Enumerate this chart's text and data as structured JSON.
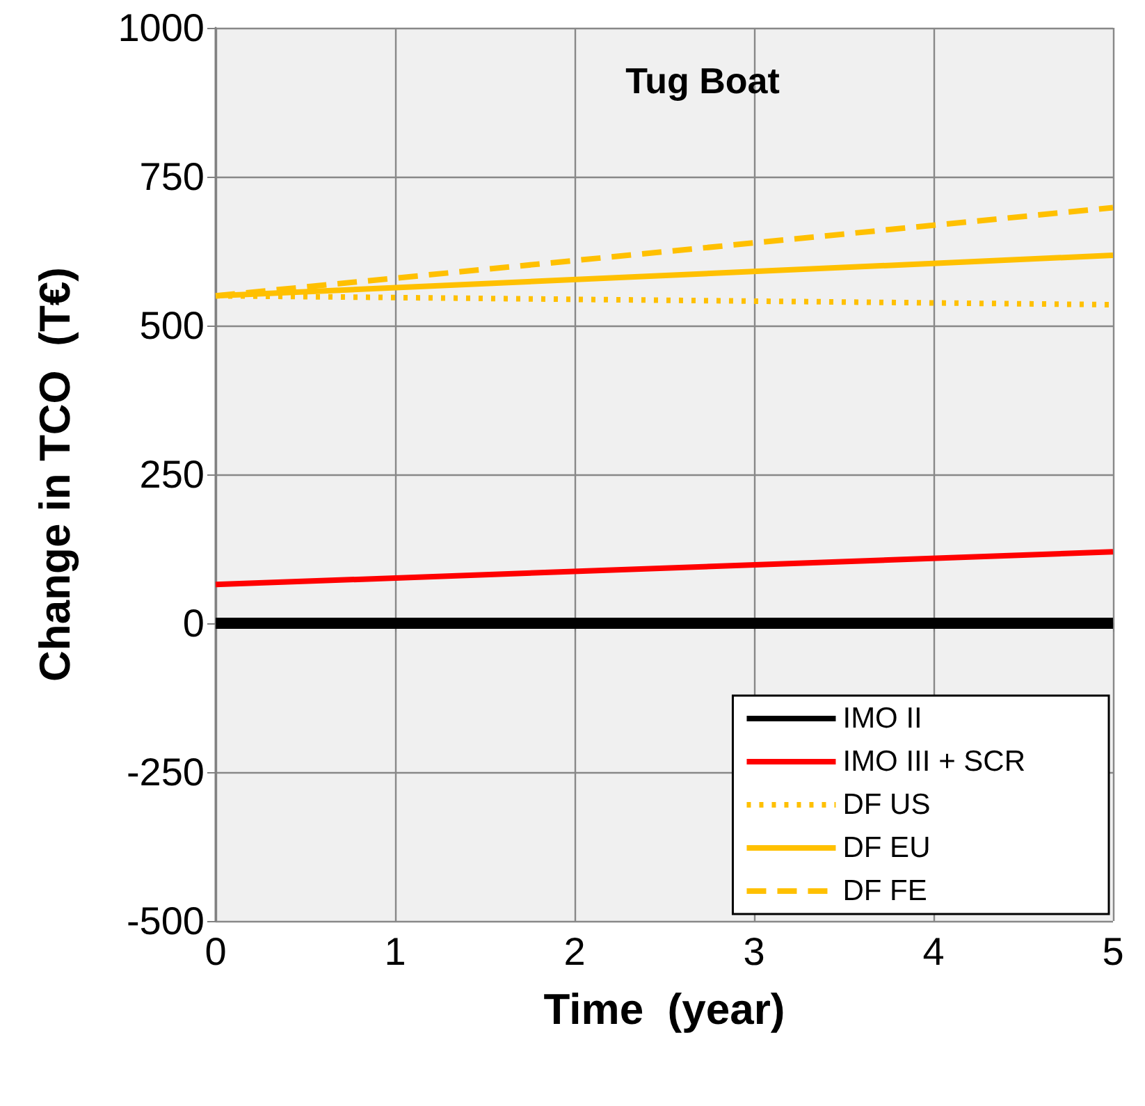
{
  "chart_data": {
    "type": "line",
    "title": "Tug Boat",
    "xlabel": "Time  (year)",
    "ylabel": "Change in TCO  (T€)",
    "x": [
      0,
      5
    ],
    "xlim": [
      0,
      5
    ],
    "xticks": [
      0,
      1,
      2,
      3,
      4,
      5
    ],
    "ylim": [
      -500,
      1000
    ],
    "yticks": [
      -500,
      -250,
      0,
      250,
      500,
      750,
      1000
    ],
    "grid": true,
    "legend": "bottom right",
    "marker": "none",
    "series": [
      {
        "name": "IMO II",
        "color": "#000000",
        "values": [
          0,
          0
        ],
        "line_style": "solid"
      },
      {
        "name": "IMO III + SCR",
        "color": "#ff0000",
        "values": [
          65,
          120
        ],
        "line_style": "solid"
      },
      {
        "name": "DF US",
        "color": "#ffc000",
        "values": [
          550,
          535
        ],
        "line_style": "dotted"
      },
      {
        "name": "DF EU",
        "color": "#ffc000",
        "values": [
          550,
          618
        ],
        "line_style": "solid"
      },
      {
        "name": "DF FE",
        "color": "#ffc000",
        "values": [
          550,
          698
        ],
        "line_style": "dashed"
      }
    ]
  }
}
